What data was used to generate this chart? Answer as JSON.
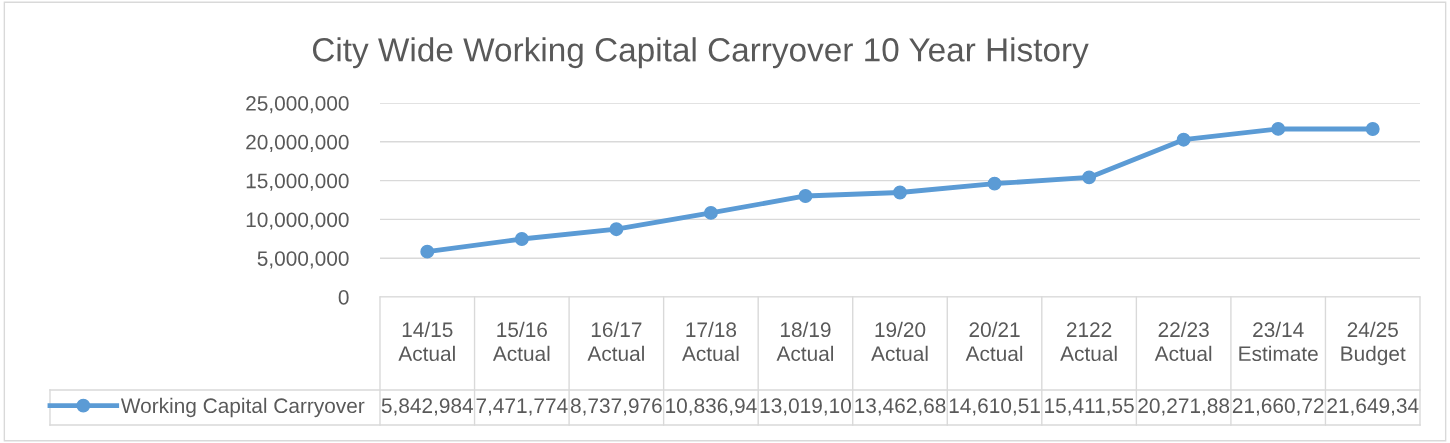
{
  "chart_data": {
    "type": "line",
    "title": "City Wide Working Capital Carryover 10 Year History",
    "categories": [
      "14/15 Actual",
      "15/16 Actual",
      "16/17 Actual",
      "17/18 Actual",
      "18/19 Actual",
      "19/20 Actual",
      "20/21 Actual",
      "2122 Actual",
      "22/23 Actual",
      "23/14 Estimate",
      "24/25 Budget"
    ],
    "series": [
      {
        "name": "Working Capital Carryover",
        "color": "#5b9bd5",
        "values": [
          5842984,
          7471774,
          8737976,
          10836940,
          13019100,
          13462680,
          14610510,
          15411550,
          20271880,
          21660720,
          21649340
        ],
        "value_labels": [
          "5,842,984",
          "7,471,774",
          "8,737,976",
          "10,836,94",
          "13,019,10",
          "13,462,68",
          "14,610,51",
          "15,411,55",
          "20,271,88",
          "21,660,72",
          "21,649,34"
        ]
      }
    ],
    "ylim": [
      0,
      25000000
    ],
    "yticks": [
      {
        "value": 0,
        "label": "0"
      },
      {
        "value": 5000000,
        "label": "5,000,000"
      },
      {
        "value": 10000000,
        "label": "10,000,000"
      },
      {
        "value": 15000000,
        "label": "15,000,000"
      },
      {
        "value": 20000000,
        "label": "20,000,000"
      },
      {
        "value": 25000000,
        "label": "25,000,000"
      }
    ],
    "grid": "y",
    "legend": "bottom",
    "marker": "circle",
    "line_style": "solid"
  }
}
